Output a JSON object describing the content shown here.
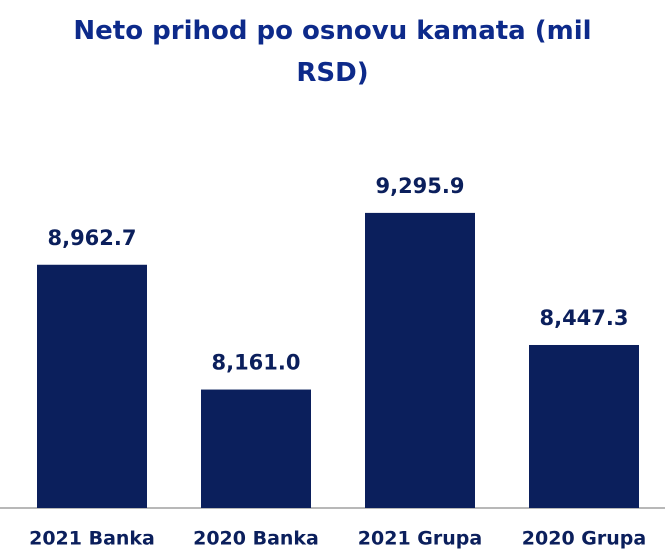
{
  "chart_data": {
    "type": "bar",
    "title": "Neto prihod po osnovu kamata (mil RSD)",
    "categories": [
      "2021 Banka",
      "2020 Banka",
      "2021 Grupa",
      "2020 Grupa"
    ],
    "values": [
      8962.7,
      8161.0,
      9295.9,
      8447.3
    ],
    "value_labels": [
      "8,962.7",
      "8,161.0",
      "9,295.9",
      "8,447.3"
    ],
    "color": "#0b1f5c",
    "ylim": [
      7400,
      9700
    ]
  }
}
